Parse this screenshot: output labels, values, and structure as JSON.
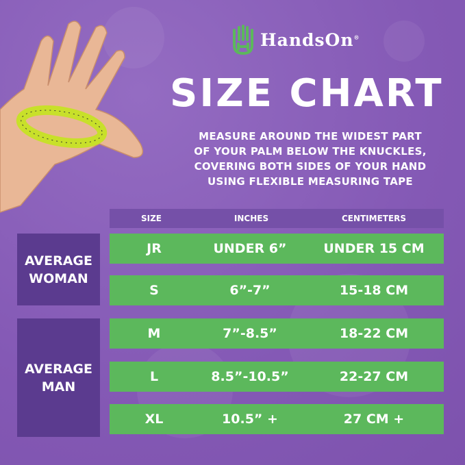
{
  "brand": {
    "name": "HandsOn",
    "trademark": "®",
    "logo_icon": "green-hand-icon"
  },
  "title": "SIZE CHART",
  "instructions": [
    "MEASURE AROUND THE WIDEST PART",
    "OF YOUR PALM BELOW THE KNUCKLES,",
    "COVERING BOTH SIDES OF YOUR HAND",
    "USING FLEXIBLE MEASURING TAPE"
  ],
  "table": {
    "headers": [
      "SIZE",
      "INCHES",
      "CENTIMETERS"
    ],
    "groups": [
      {
        "label_lines": [
          "AVERAGE",
          "WOMAN"
        ]
      },
      {
        "label_lines": [
          "AVERAGE",
          "MAN"
        ]
      }
    ],
    "rows": [
      {
        "size": "JR",
        "inches": "UNDER 6”",
        "cm": "UNDER 15 CM"
      },
      {
        "size": "S",
        "inches": "6”-7”",
        "cm": "15-18 CM"
      },
      {
        "size": "M",
        "inches": "7”-8.5”",
        "cm": "18-22 CM"
      },
      {
        "size": "L",
        "inches": "8.5”-10.5”",
        "cm": "22-27 CM"
      },
      {
        "size": "XL",
        "inches": "10.5” +",
        "cm": "27 CM +"
      }
    ]
  },
  "colors": {
    "background": "#8459b5",
    "row_green": "#5cb85c",
    "group_box": "#5b3b8f",
    "header_bar": "#7550a8",
    "logo_green": "#5cb85c"
  }
}
